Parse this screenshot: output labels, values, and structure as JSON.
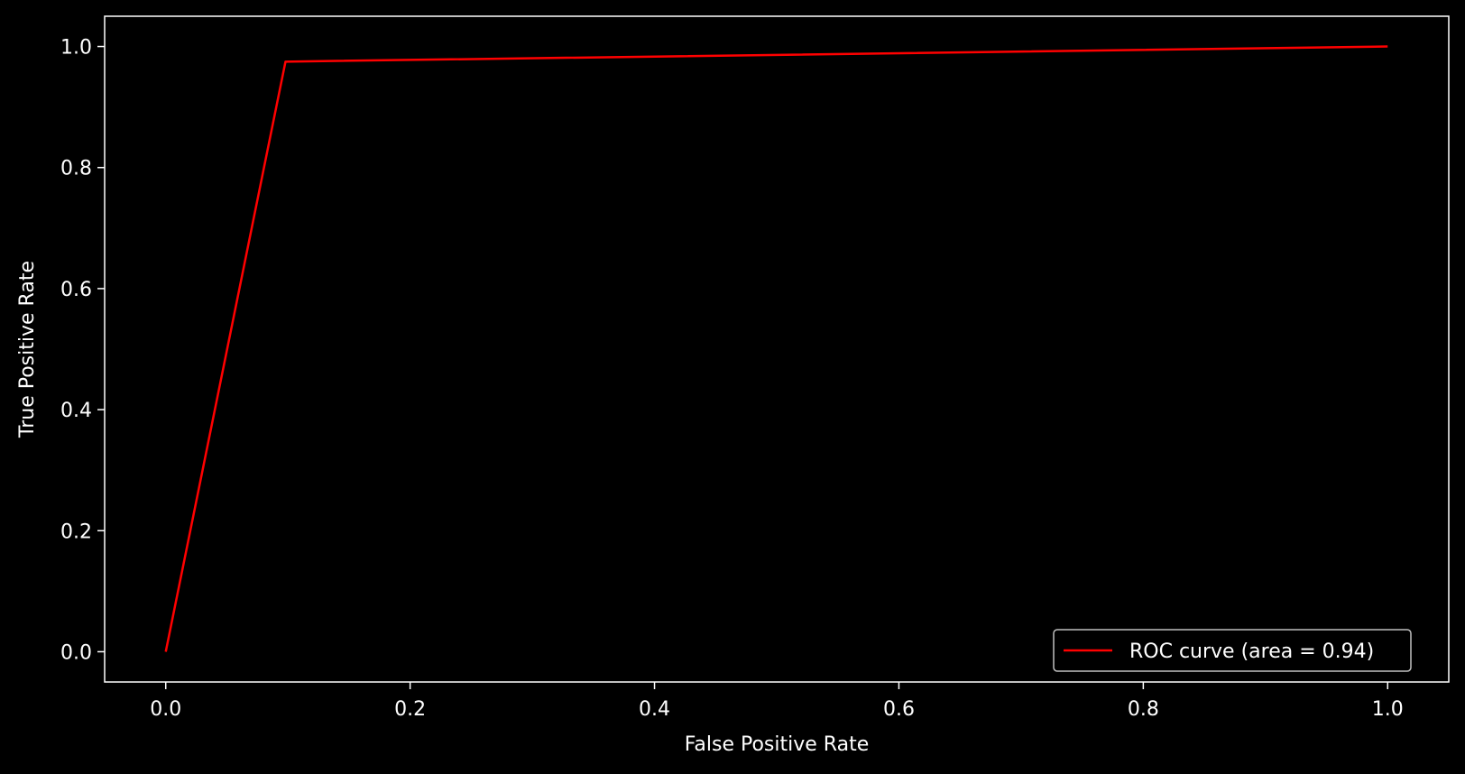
{
  "chart_data": {
    "type": "line",
    "title": "",
    "xlabel": "False Positive Rate",
    "ylabel": "True Positive Rate",
    "xlim": [
      -0.05,
      1.05
    ],
    "ylim": [
      -0.05,
      1.05
    ],
    "xticks": [
      0.0,
      0.2,
      0.4,
      0.6,
      0.8,
      1.0
    ],
    "yticks": [
      0.0,
      0.2,
      0.4,
      0.6,
      0.8,
      1.0
    ],
    "xtick_labels": [
      "0.0",
      "0.2",
      "0.4",
      "0.6",
      "0.8",
      "1.0"
    ],
    "ytick_labels": [
      "0.0",
      "0.2",
      "0.4",
      "0.6",
      "0.8",
      "1.0"
    ],
    "grid": false,
    "legend_position": "bottom-right",
    "background_color": "#000000",
    "axis_color": "#ffffff",
    "series": [
      {
        "name": "ROC curve (area = 0.94)",
        "color": "#ff0000",
        "x": [
          0.0,
          0.098,
          1.0
        ],
        "y": [
          0.0,
          0.975,
          1.0
        ]
      }
    ]
  }
}
